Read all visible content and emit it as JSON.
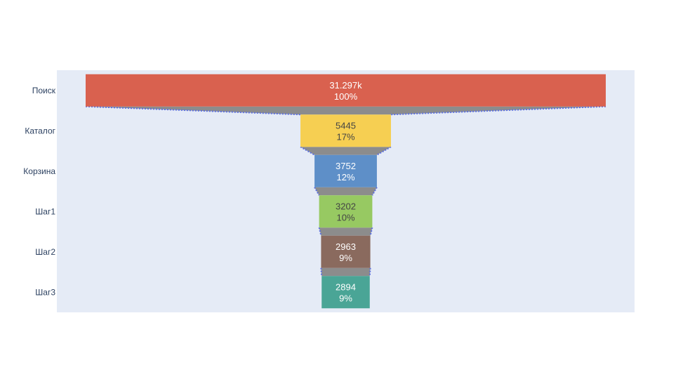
{
  "chart_data": {
    "type": "funnel",
    "categories": [
      "Поиск",
      "Каталог",
      "Корзина",
      "Шаг1",
      "Шаг2",
      "Шаг3"
    ],
    "values": [
      31297,
      5445,
      3752,
      3202,
      2963,
      2894
    ],
    "value_labels": [
      "31.297k",
      "5445",
      "3752",
      "3202",
      "2963",
      "2894"
    ],
    "percent_labels": [
      "100%",
      "17%",
      "12%",
      "10%",
      "9%",
      "9%"
    ],
    "colors": [
      "#d9614f",
      "#f6cf52",
      "#5e8fc8",
      "#97c962",
      "#8a6a5e",
      "#4aa596"
    ],
    "label_colors": [
      "#ffffff",
      "#444444",
      "#ffffff",
      "#444444",
      "#ffffff",
      "#ffffff"
    ],
    "connector_color": "#8c8c8c",
    "connector_line_color": "#5b6fe0",
    "plot_background": "#e5ebf6",
    "grid": false,
    "legend": "none"
  }
}
